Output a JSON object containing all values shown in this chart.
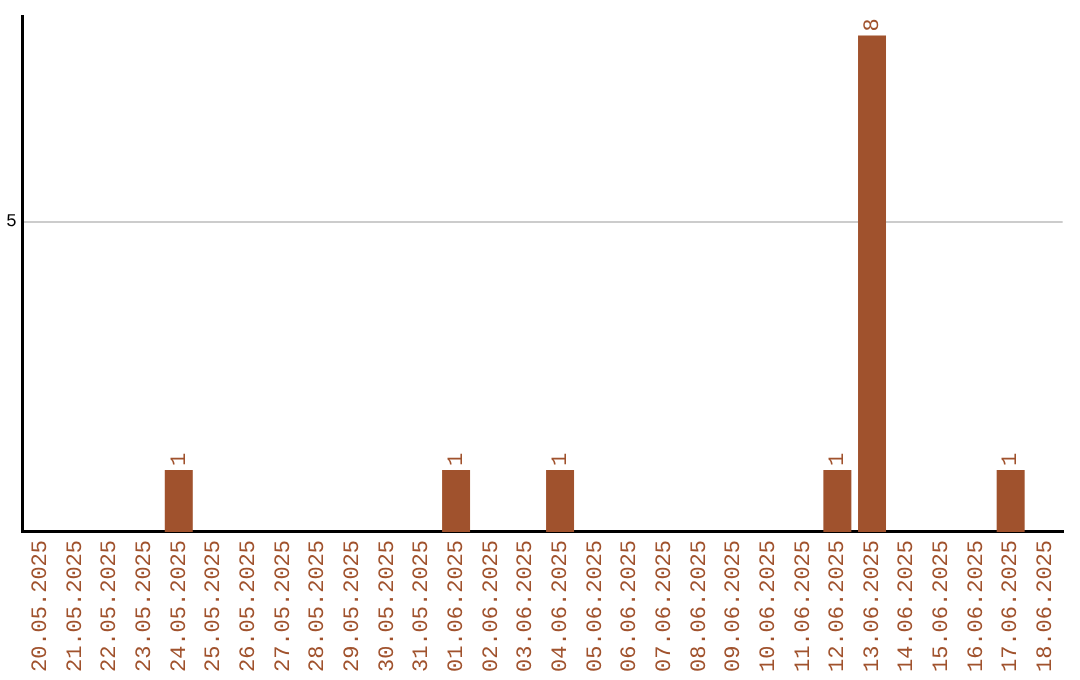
{
  "chart_data": {
    "type": "bar",
    "categories": [
      "20.05.2025",
      "21.05.2025",
      "22.05.2025",
      "23.05.2025",
      "24.05.2025",
      "25.05.2025",
      "26.05.2025",
      "27.05.2025",
      "28.05.2025",
      "29.05.2025",
      "30.05.2025",
      "31.05.2025",
      "01.06.2025",
      "02.06.2025",
      "03.06.2025",
      "04.06.2025",
      "05.06.2025",
      "06.06.2025",
      "07.06.2025",
      "08.06.2025",
      "09.06.2025",
      "10.06.2025",
      "11.06.2025",
      "12.06.2025",
      "13.06.2025",
      "14.06.2025",
      "15.06.2025",
      "16.06.2025",
      "17.06.2025",
      "18.06.2025"
    ],
    "values": [
      0,
      0,
      0,
      0,
      1,
      0,
      0,
      0,
      0,
      0,
      0,
      0,
      1,
      0,
      0,
      1,
      0,
      0,
      0,
      0,
      0,
      0,
      0,
      1,
      8,
      0,
      0,
      0,
      1,
      0
    ],
    "value_labels": [
      null,
      null,
      null,
      null,
      "1",
      null,
      null,
      null,
      null,
      null,
      null,
      null,
      "1",
      null,
      null,
      "1",
      null,
      null,
      null,
      null,
      null,
      null,
      null,
      "1",
      "8",
      null,
      null,
      null,
      "1",
      null
    ],
    "color": "#a0522d",
    "ylim": [
      0,
      8.3
    ],
    "yticks": [
      5
    ],
    "grid": "y",
    "legend": false
  }
}
